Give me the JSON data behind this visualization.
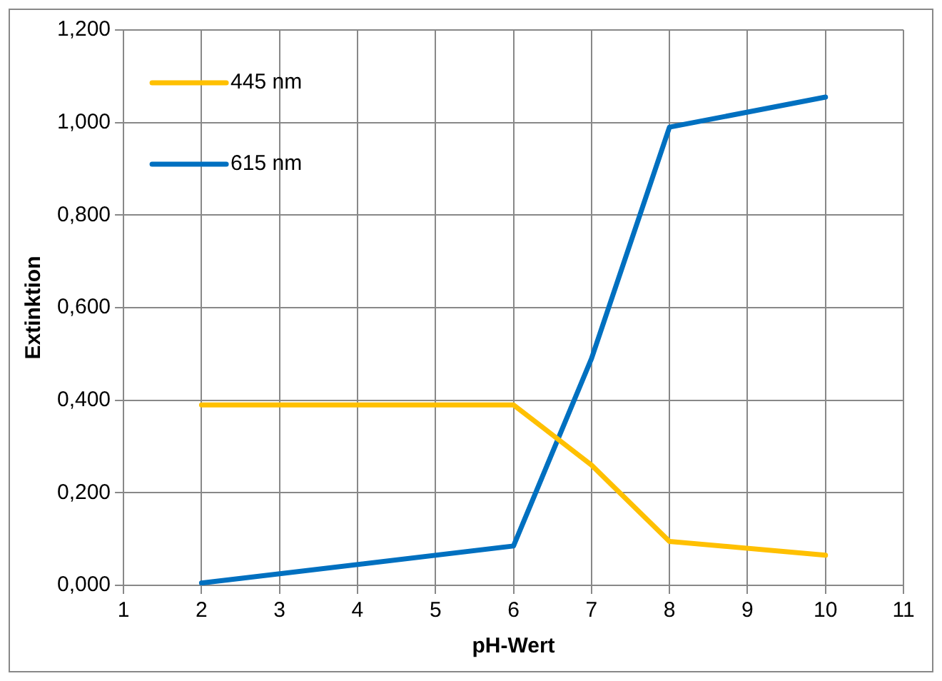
{
  "chart_data": {
    "type": "line",
    "xlabel": "pH-Wert",
    "ylabel": "Extinktion",
    "x": [
      2,
      6,
      7,
      8,
      10
    ],
    "series": [
      {
        "name": "445 nm",
        "color": "#ffc000",
        "values": [
          0.39,
          0.39,
          0.26,
          0.095,
          0.065
        ]
      },
      {
        "name": "615 nm",
        "color": "#0070c0",
        "values": [
          0.005,
          0.085,
          0.49,
          0.99,
          1.055
        ]
      }
    ],
    "xlim": [
      1,
      11
    ],
    "xticks": [
      1,
      2,
      3,
      4,
      5,
      6,
      7,
      8,
      9,
      10,
      11
    ],
    "ylim": [
      0,
      1.2
    ],
    "yticks": [
      {
        "value": 0,
        "label": "0,000"
      },
      {
        "value": 0.2,
        "label": "0,200"
      },
      {
        "value": 0.4,
        "label": "0,400"
      },
      {
        "value": 0.6,
        "label": "0,600"
      },
      {
        "value": 0.8,
        "label": "0,800"
      },
      {
        "value": 1,
        "label": "1,000"
      },
      {
        "value": 1.2,
        "label": "1,200"
      }
    ],
    "grid": true,
    "legend": "top left",
    "marker": "none",
    "line_style": "solid"
  }
}
